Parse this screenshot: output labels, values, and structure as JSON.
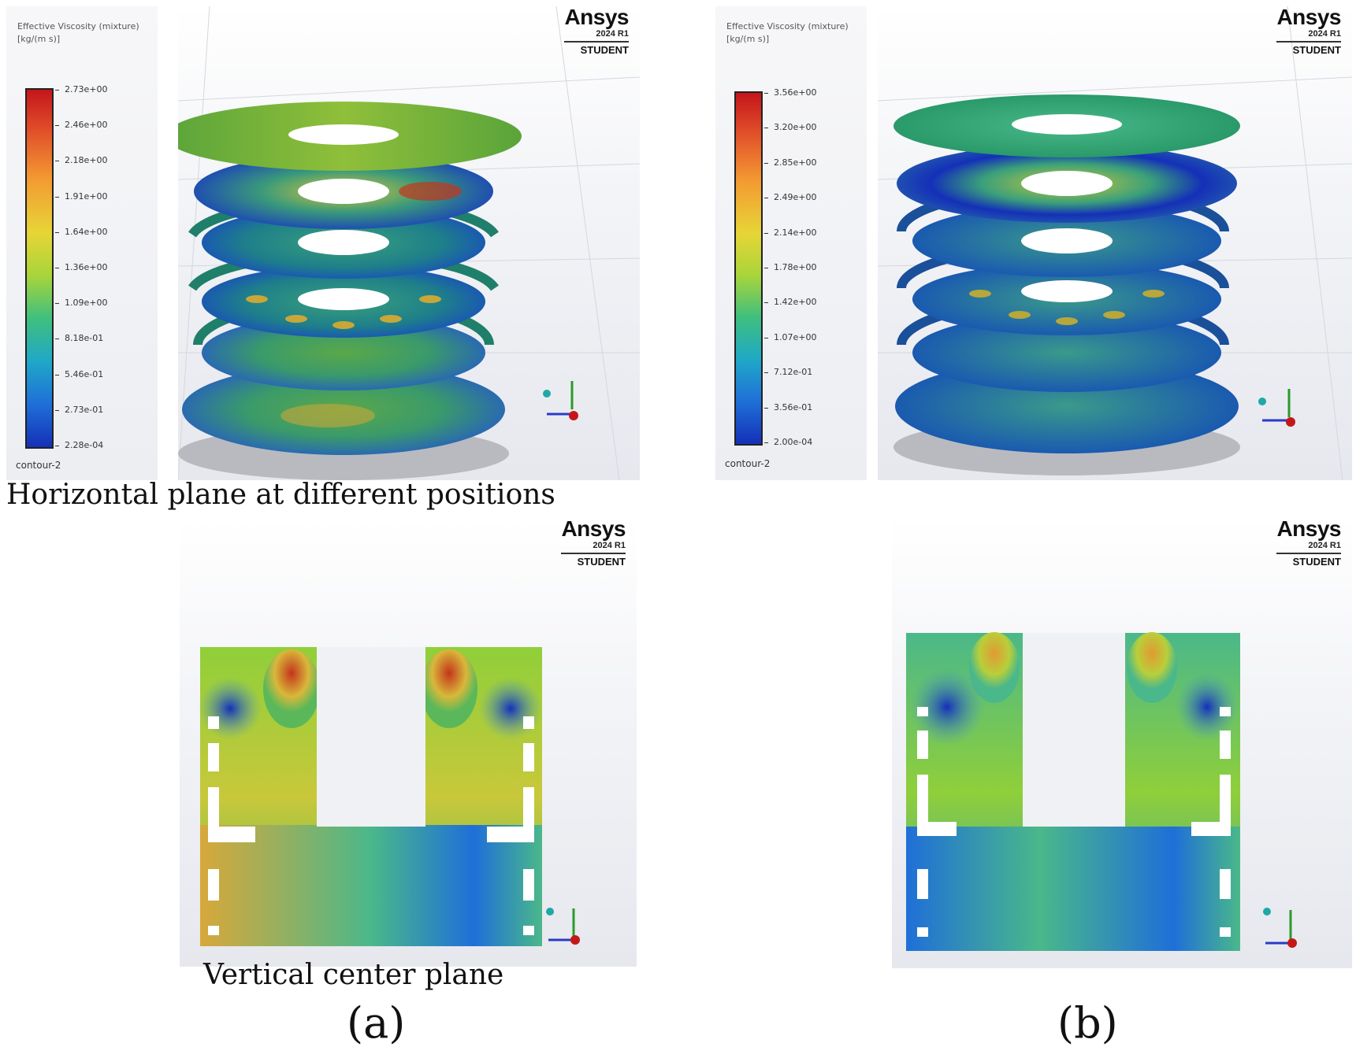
{
  "panels": {
    "a": {
      "legend_title": "Effective Viscosity (mixture) [kg/(m s)]",
      "ticks": [
        "2.73e+00",
        "2.46e+00",
        "2.18e+00",
        "1.91e+00",
        "1.64e+00",
        "1.36e+00",
        "1.09e+00",
        "8.18e-01",
        "5.46e-01",
        "2.73e-01",
        "2.28e-04"
      ],
      "contour_label": "contour-2",
      "watermark": {
        "brand": "Ansys",
        "version": "2024 R1",
        "edition": "STUDENT"
      }
    },
    "b": {
      "legend_title": "Effective Viscosity (mixture) [kg/(m s)]",
      "ticks": [
        "3.56e+00",
        "3.20e+00",
        "2.85e+00",
        "2.49e+00",
        "2.14e+00",
        "1.78e+00",
        "1.42e+00",
        "1.07e+00",
        "7.12e-01",
        "3.56e-01",
        "2.00e-04"
      ],
      "contour_label": "contour-2",
      "watermark": {
        "brand": "Ansys",
        "version": "2024 R1",
        "edition": "STUDENT"
      }
    }
  },
  "captions": {
    "horizontal": "Horizontal plane at different positions",
    "vertical": "Vertical center plane",
    "label_a": "(a)",
    "label_b": "(b)"
  },
  "colors": {
    "high": "#c4151b",
    "mid": "#a8d53a",
    "low": "#1430b8"
  }
}
